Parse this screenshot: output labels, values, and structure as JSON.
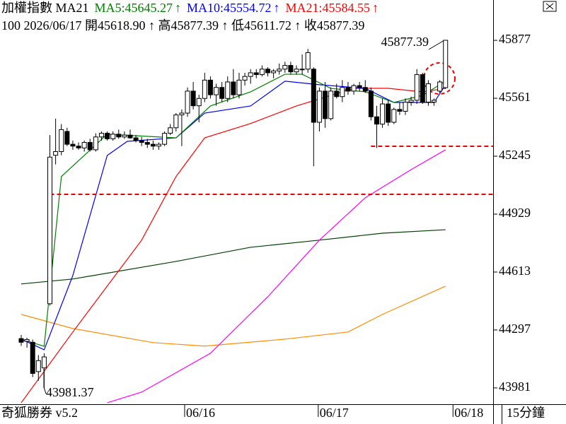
{
  "chart_data": {
    "type": "candlestick",
    "header": {
      "title": "加權指數 MA21",
      "arrow": "↑",
      "ma": [
        {
          "label": "MA5:45645.27",
          "color": "#008000"
        },
        {
          "label": "MA10:45554.72",
          "color": "#0000ff"
        },
        {
          "label": "MA21:45584.55",
          "color": "#ff0000"
        }
      ],
      "info": "100 2026/06/17 開45618.90 ↑ 高45877.39 ↑ 低45611.72 ↑ 收45877.39"
    },
    "footer_left": "奇狐勝券 v5.2",
    "footer_right": "15分鐘",
    "ylim": [
      43892,
      46097
    ],
    "yticks": [
      45877,
      45561,
      45245,
      44929,
      44613,
      44297,
      43981
    ],
    "xlim": [
      -3.7,
      82.3
    ],
    "xticks": [
      {
        "value": 28.5,
        "label": "06/16"
      },
      {
        "value": 51.8,
        "label": "06/17"
      },
      {
        "value": 75.3,
        "label": "06/18"
      }
    ],
    "open": [
      44250,
      44235,
      44230,
      44070,
      44090,
      44440,
      45250,
      45270,
      45380,
      45310,
      45300,
      45290,
      45320,
      45280,
      45350,
      45370,
      45340,
      45365,
      45350,
      45360,
      45345,
      45330,
      45320,
      45310,
      45300,
      45310,
      45370,
      45400,
      45470,
      45480,
      45600,
      45520,
      45560,
      45660,
      45580,
      45620,
      45560,
      45650,
      45580,
      45660,
      45680,
      45700,
      45690,
      45720,
      45700,
      45710,
      45720,
      45740,
      45705,
      45720,
      45720,
      45720,
      45430,
      45600,
      45450,
      45600,
      45570,
      45620,
      45600,
      45630,
      45620,
      45600,
      45460,
      45420,
      45530,
      45430,
      45500,
      45490,
      45540,
      45550,
      45690,
      45540,
      45540,
      45600,
      45618.9
    ],
    "high": [
      44270,
      44255,
      44245,
      44160,
      44170,
      45360,
      45450,
      45420,
      45400,
      45330,
      45320,
      45330,
      45340,
      45370,
      45380,
      45380,
      45380,
      45390,
      45380,
      45390,
      45360,
      45350,
      45340,
      45330,
      45320,
      45380,
      45420,
      45480,
      45500,
      45620,
      45650,
      45580,
      45700,
      45680,
      45640,
      45650,
      45680,
      45720,
      45700,
      45700,
      45720,
      45720,
      45740,
      45730,
      45720,
      45750,
      45760,
      45760,
      45740,
      45800,
      45830,
      45730,
      45620,
      45650,
      45620,
      45640,
      45660,
      45650,
      45640,
      45650,
      45660,
      45620,
      45520,
      45560,
      45550,
      45510,
      45540,
      45560,
      45570,
      45720,
      45700,
      45660,
      45560,
      45660,
      45877.39
    ],
    "low": [
      44210,
      44200,
      44040,
      44020,
      43981.37,
      44430,
      45200,
      45250,
      45300,
      45280,
      45280,
      45270,
      45270,
      45270,
      45330,
      45330,
      45330,
      45340,
      45340,
      45340,
      45320,
      45300,
      45290,
      45280,
      45280,
      45300,
      45360,
      45380,
      45300,
      45460,
      45500,
      45430,
      45540,
      45560,
      45520,
      45540,
      45540,
      45560,
      45560,
      45630,
      45640,
      45670,
      45680,
      45680,
      45670,
      45690,
      45700,
      45690,
      45690,
      45690,
      45700,
      45190,
      45380,
      45400,
      45440,
      45560,
      45540,
      45580,
      45580,
      45600,
      45590,
      45440,
      45290,
      45400,
      45410,
      45420,
      45470,
      45470,
      45520,
      45530,
      45530,
      45520,
      45520,
      45590,
      45611.72
    ],
    "close": [
      44230,
      44245,
      44060,
      44130,
      44150,
      45240,
      45270,
      45390,
      45310,
      45300,
      45290,
      45320,
      45280,
      45350,
      45370,
      45340,
      45365,
      45350,
      45360,
      45345,
      45330,
      45320,
      45310,
      45300,
      45310,
      45370,
      45400,
      45470,
      45480,
      45600,
      45520,
      45560,
      45660,
      45580,
      45620,
      45560,
      45650,
      45580,
      45660,
      45680,
      45700,
      45690,
      45720,
      45700,
      45710,
      45720,
      45740,
      45705,
      45720,
      45720,
      45810,
      45430,
      45600,
      45450,
      45600,
      45570,
      45620,
      45600,
      45630,
      45620,
      45600,
      45460,
      45420,
      45530,
      45430,
      45500,
      45490,
      45540,
      45550,
      45690,
      45540,
      45640,
      45550,
      45650,
      45877.39
    ],
    "lines": [
      {
        "color": "#004000",
        "x": [
          0,
          9,
          27,
          40,
          52,
          63,
          74
        ],
        "values": [
          44548,
          44575,
          44671,
          44748,
          44787,
          44825,
          44844
        ]
      },
      {
        "color": "#ff8c00",
        "x": [
          0,
          9,
          23,
          32,
          46,
          57,
          63,
          74
        ],
        "values": [
          44382,
          44305,
          44228,
          44209,
          44247,
          44286,
          44382,
          44536
        ]
      },
      {
        "color": "#ff00ff",
        "x": [
          15,
          21,
          33,
          43,
          52,
          60,
          68,
          74
        ],
        "values": [
          43900,
          43958,
          44170,
          44478,
          44787,
          45018,
          45172,
          45280
        ]
      },
      {
        "color": "#ff0000",
        "x": [
          0,
          9,
          21,
          27,
          32,
          40,
          48,
          58,
          64,
          70,
          74
        ],
        "values": [
          43900,
          44286,
          44787,
          45134,
          45345,
          45423,
          45519,
          45615,
          45615,
          45596,
          45615
        ]
      },
      {
        "color": "#0000ff",
        "x": [
          0,
          4,
          9,
          15,
          18.5,
          27,
          32,
          40,
          46,
          52,
          60,
          65,
          72,
          74
        ],
        "values": [
          44247,
          44189,
          44594,
          45249,
          45326,
          45345,
          45480,
          45519,
          45654,
          45635,
          45615,
          45538,
          45538,
          45635
        ]
      },
      {
        "color": "#008000",
        "x": [
          0,
          4,
          7,
          15,
          27,
          33,
          40,
          46,
          49,
          54,
          60,
          65,
          70,
          74
        ],
        "values": [
          44247,
          44208,
          45134,
          45365,
          45345,
          45519,
          45596,
          45692,
          45692,
          45615,
          45596,
          45538,
          45577,
          45654
        ]
      }
    ],
    "hlines": [
      {
        "value": 45037,
        "x": 5
      },
      {
        "value": 45299,
        "x": 61
      }
    ],
    "annotations": [
      {
        "text": "45877.39"
      },
      {
        "text": "43981.37"
      }
    ]
  }
}
